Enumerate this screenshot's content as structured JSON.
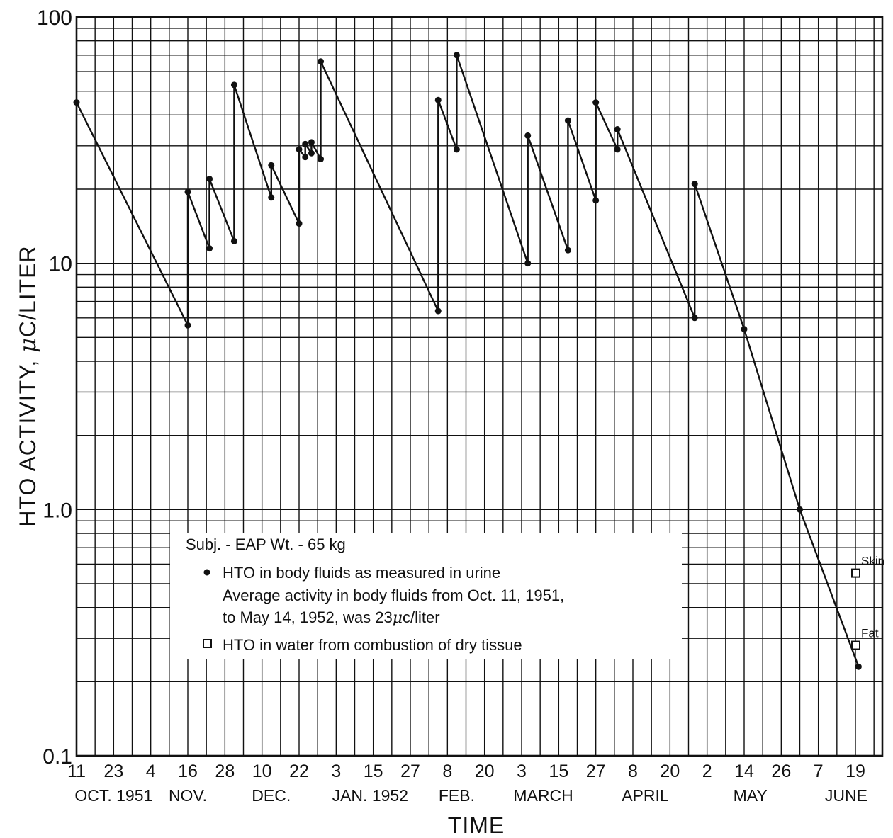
{
  "chart_data": {
    "type": "line",
    "ylabel_prefix": "HTO ACTIVITY, ",
    "ylabel_mu": "μ",
    "ylabel_suffix": "C/LITER",
    "xlabel": "TIME",
    "yscale": "log",
    "ylim": [
      0.1,
      100
    ],
    "grid": true,
    "y_tick_labels": [
      "100",
      "10",
      "1.0",
      "0.1"
    ],
    "y_tick_values": [
      100,
      10,
      1,
      0.1
    ],
    "x_tick_labels": [
      "11",
      "23",
      "4",
      "16",
      "28",
      "10",
      "22",
      "3",
      "15",
      "27",
      "8",
      "20",
      "3",
      "15",
      "27",
      "8",
      "20",
      "2",
      "14",
      "26",
      "7",
      "19"
    ],
    "x_tick_dates": [
      "1951-10-11",
      "1951-10-23",
      "1951-11-04",
      "1951-11-16",
      "1951-11-28",
      "1951-12-10",
      "1951-12-22",
      "1952-01-03",
      "1952-01-15",
      "1952-01-27",
      "1952-02-08",
      "1952-02-20",
      "1952-03-03",
      "1952-03-15",
      "1952-03-27",
      "1952-04-08",
      "1952-04-20",
      "1952-05-02",
      "1952-05-14",
      "1952-05-26",
      "1952-06-07",
      "1952-06-19"
    ],
    "month_labels": [
      "OCT. 1951",
      "NOV.",
      "DEC.",
      "JAN. 1952",
      "FEB.",
      "MARCH",
      "APRIL",
      "MAY",
      "JUNE"
    ],
    "month_label_dates": [
      "1951-10-23",
      "1951-11-16",
      "1951-12-13",
      "1952-01-14",
      "1952-02-11",
      "1952-03-10",
      "1952-04-12",
      "1952-05-16",
      "1952-06-16"
    ],
    "series": [
      {
        "marker": "filled-circle",
        "points": [
          [
            "1951-10-11",
            45
          ],
          [
            "1951-11-16",
            5.6
          ],
          [
            "1951-11-16",
            19.5
          ],
          [
            "1951-11-23",
            11.5
          ],
          [
            "1951-11-23",
            22
          ],
          [
            "1951-12-01",
            12.3
          ],
          [
            "1951-12-01",
            53
          ],
          [
            "1951-12-13",
            18.5
          ],
          [
            "1951-12-13",
            25
          ],
          [
            "1951-12-22",
            14.5
          ],
          [
            "1951-12-22",
            29
          ],
          [
            "1951-12-24",
            27
          ],
          [
            "1951-12-24",
            30.5
          ],
          [
            "1951-12-26",
            28
          ],
          [
            "1951-12-26",
            31
          ],
          [
            "1951-12-29",
            26.5
          ],
          [
            "1951-12-29",
            66
          ],
          [
            "1952-02-05",
            6.4
          ],
          [
            "1952-02-05",
            46
          ],
          [
            "1952-02-11",
            29
          ],
          [
            "1952-02-11",
            70
          ],
          [
            "1952-03-05",
            10
          ],
          [
            "1952-03-05",
            33
          ],
          [
            "1952-03-18",
            11.3
          ],
          [
            "1952-03-18",
            38
          ],
          [
            "1952-03-27",
            18
          ],
          [
            "1952-03-27",
            45
          ],
          [
            "1952-04-03",
            29
          ],
          [
            "1952-04-03",
            35
          ],
          [
            "1952-04-28",
            6
          ],
          [
            "1952-04-28",
            21
          ],
          [
            "1952-05-14",
            5.4
          ],
          [
            "1952-06-01",
            1.0
          ],
          [
            "1952-06-20",
            0.23
          ]
        ]
      },
      {
        "marker": "open-square",
        "points": [
          [
            "1952-06-19",
            0.55
          ],
          [
            "1952-06-19",
            0.28
          ]
        ]
      }
    ],
    "point_labels": [
      {
        "text": "Skin",
        "date": "1952-06-19",
        "value": 0.55
      },
      {
        "text": "Fat",
        "date": "1952-06-19",
        "value": 0.28
      }
    ]
  },
  "legend": {
    "subject": "Subj. - EAP   Wt. - 65 kg",
    "item1": "HTO in body fluids as measured in urine",
    "item1_line2": "Average activity in body fluids from Oct. 11, 1951,",
    "item1_line3_pre": "to May 14, 1952, was 23",
    "item1_line3_mu": "μ",
    "item1_line3_post": "c/liter",
    "item2": "HTO in water from combustion of dry tissue"
  }
}
